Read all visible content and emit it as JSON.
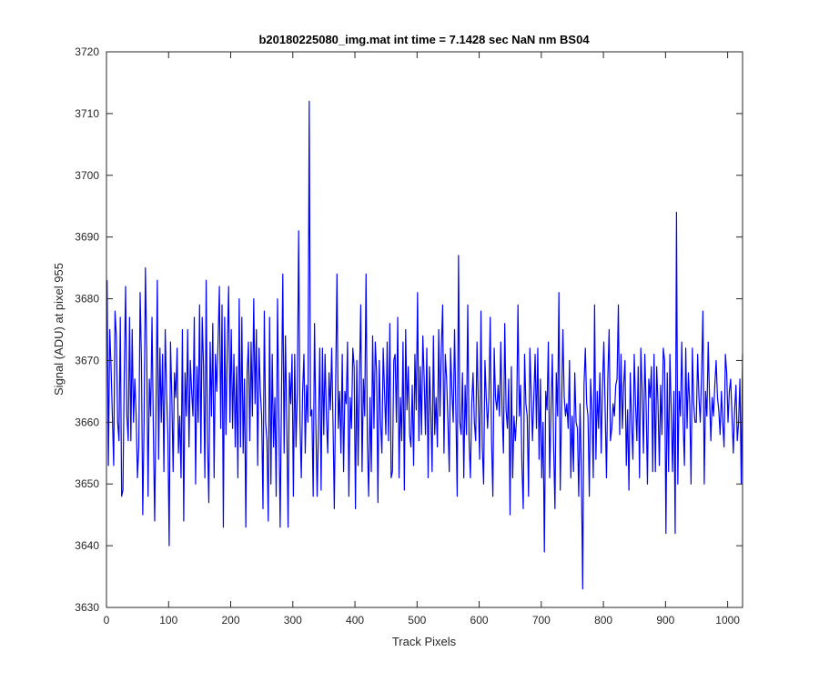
{
  "chart_data": {
    "type": "line",
    "title": "b20180225080_img.mat int time = 7.1428 sec  NaN nm BS04",
    "xlabel": "Track Pixels",
    "ylabel": "Signal (ADU) at pixel 955",
    "xlim": [
      0,
      1024
    ],
    "ylim": [
      3630,
      3720
    ],
    "xticks": [
      0,
      100,
      200,
      300,
      400,
      500,
      600,
      700,
      800,
      900,
      1000
    ],
    "yticks": [
      3630,
      3640,
      3650,
      3660,
      3670,
      3680,
      3690,
      3700,
      3710,
      3720
    ],
    "grid": false,
    "legend": "none",
    "colors": {
      "line": "#0000ff",
      "axes": "#262626",
      "background": "#ffffff"
    },
    "series": [
      {
        "name": "",
        "x_start": 1,
        "x_step": 1,
        "values": [
          3683,
          3653,
          3675,
          3669,
          3661,
          3653,
          3678,
          3674,
          3660,
          3657,
          3677,
          3648,
          3649,
          3668,
          3682,
          3661,
          3657,
          3677,
          3657,
          3675,
          3660,
          3667,
          3661,
          3651,
          3656,
          3681,
          3670,
          3645,
          3660,
          3685,
          3671,
          3648,
          3667,
          3661,
          3677,
          3659,
          3644,
          3662,
          3683,
          3654,
          3672,
          3660,
          3671,
          3652,
          3675,
          3665,
          3658,
          3640,
          3673,
          3664,
          3652,
          3668,
          3664,
          3672,
          3655,
          3661,
          3651,
          3675,
          3644,
          3668,
          3661,
          3675,
          3656,
          3670,
          3665,
          3661,
          3677,
          3650,
          3669,
          3660,
          3679,
          3655,
          3677,
          3669,
          3651,
          3683,
          3657,
          3647,
          3673,
          3661,
          3676,
          3651,
          3671,
          3665,
          3673,
          3682,
          3659,
          3679,
          3643,
          3677,
          3658,
          3672,
          3682,
          3660,
          3675,
          3659,
          3671,
          3656,
          3669,
          3651,
          3680,
          3656,
          3677,
          3655,
          3667,
          3643,
          3668,
          3673,
          3657,
          3673,
          3661,
          3680,
          3663,
          3675,
          3653,
          3672,
          3665,
          3661,
          3646,
          3678,
          3660,
          3657,
          3644,
          3677,
          3650,
          3671,
          3656,
          3664,
          3648,
          3680,
          3661,
          3643,
          3664,
          3684,
          3655,
          3674,
          3660,
          3643,
          3668,
          3663,
          3671,
          3648,
          3671,
          3656,
          3665,
          3691,
          3660,
          3651,
          3665,
          3671,
          3655,
          3666,
          3660,
          3712,
          3661,
          3662,
          3648,
          3676,
          3660,
          3648,
          3659,
          3672,
          3649,
          3672,
          3658,
          3671,
          3661,
          3655,
          3668,
          3662,
          3672,
          3660,
          3646,
          3666,
          3684,
          3659,
          3665,
          3655,
          3671,
          3652,
          3665,
          3663,
          3673,
          3648,
          3664,
          3659,
          3672,
          3669,
          3646,
          3670,
          3653,
          3667,
          3679,
          3652,
          3667,
          3661,
          3684,
          3657,
          3648,
          3664,
          3652,
          3674,
          3659,
          3673,
          3668,
          3647,
          3670,
          3660,
          3655,
          3672,
          3665,
          3658,
          3673,
          3657,
          3676,
          3651,
          3652,
          3670,
          3671,
          3660,
          3677,
          3651,
          3664,
          3657,
          3673,
          3649,
          3675,
          3662,
          3669,
          3658,
          3656,
          3666,
          3653,
          3671,
          3662,
          3681,
          3657,
          3669,
          3658,
          3674,
          3667,
          3658,
          3672,
          3651,
          3669,
          3662,
          3652,
          3674,
          3658,
          3664,
          3656,
          3675,
          3661,
          3672,
          3679,
          3655,
          3671,
          3667,
          3660,
          3652,
          3672,
          3665,
          3660,
          3675,
          3662,
          3648,
          3687,
          3660,
          3658,
          3668,
          3651,
          3666,
          3658,
          3679,
          3657,
          3651,
          3663,
          3668,
          3660,
          3657,
          3673,
          3663,
          3654,
          3678,
          3656,
          3650,
          3670,
          3664,
          3659,
          3664,
          3677,
          3657,
          3648,
          3672,
          3664,
          3662,
          3666,
          3661,
          3673,
          3662,
          3655,
          3676,
          3662,
          3659,
          3667,
          3645,
          3669,
          3651,
          3661,
          3657,
          3661,
          3679,
          3661,
          3666,
          3653,
          3646,
          3671,
          3663,
          3661,
          3648,
          3672,
          3665,
          3657,
          3664,
          3671,
          3659,
          3672,
          3654,
          3667,
          3651,
          3660,
          3639,
          3665,
          3662,
          3673,
          3651,
          3662,
          3671,
          3656,
          3646,
          3668,
          3661,
          3681,
          3649,
          3662,
          3675,
          3664,
          3661,
          3663,
          3659,
          3670,
          3651,
          3661,
          3652,
          3668,
          3660,
          3659,
          3648,
          3663,
          3652,
          3633,
          3666,
          3672,
          3663,
          3661,
          3648,
          3667,
          3662,
          3651,
          3679,
          3654,
          3665,
          3659,
          3668,
          3655,
          3666,
          3673,
          3662,
          3651,
          3667,
          3675,
          3657,
          3659,
          3663,
          3661,
          3666,
          3667,
          3679,
          3658,
          3671,
          3659,
          3666,
          3670,
          3653,
          3662,
          3649,
          3668,
          3660,
          3654,
          3671,
          3663,
          3657,
          3669,
          3651,
          3672,
          3665,
          3655,
          3671,
          3663,
          3650,
          3667,
          3664,
          3669,
          3652,
          3671,
          3652,
          3669,
          3663,
          3653,
          3666,
          3658,
          3672,
          3670,
          3642,
          3668,
          3652,
          3671,
          3662,
          3652,
          3665,
          3642,
          3694,
          3650,
          3665,
          3661,
          3673,
          3660,
          3653,
          3672,
          3659,
          3668,
          3663,
          3650,
          3672,
          3663,
          3660,
          3660,
          3671,
          3664,
          3660,
          3668,
          3678,
          3650,
          3665,
          3661,
          3673,
          3664,
          3657,
          3664,
          3661,
          3666,
          3670,
          3664,
          3662,
          3658,
          3665,
          3660,
          3656,
          3671,
          3668,
          3660,
          3665,
          3667,
          3661,
          3655,
          3662,
          3666,
          3657,
          3660,
          3667,
          3650,
          3671
        ]
      }
    ]
  }
}
